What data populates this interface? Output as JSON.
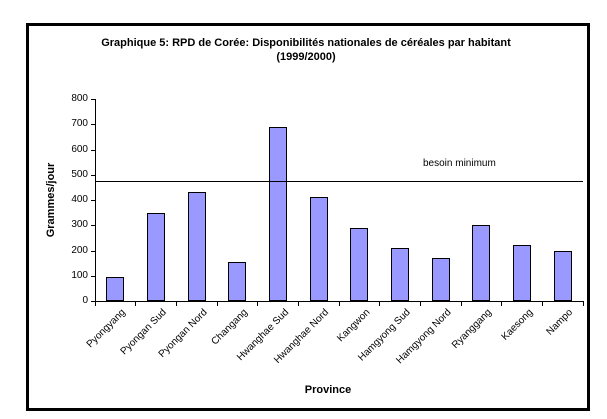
{
  "chart_data": {
    "type": "bar",
    "title": "Graphique 5: RPD de Corée: Disponibilités nationales de céréales par habitant",
    "subtitle": "(1999/2000)",
    "xlabel": "Province",
    "ylabel": "Grammes/jour",
    "categories": [
      "Pyongyang",
      "Pyongan Sud",
      "Pyongan Nord",
      "Changang",
      "Hwanghae Sud",
      "Hwanghae Nord",
      "Kangwon",
      "Hamgyong Sud",
      "Hamgyong Nord",
      "Ryanggang",
      "Kaesong",
      "Nampo"
    ],
    "values": [
      95,
      350,
      430,
      155,
      690,
      410,
      290,
      210,
      170,
      300,
      220,
      200
    ],
    "ylim": [
      0,
      800
    ],
    "yticks": [
      0,
      100,
      200,
      300,
      400,
      500,
      600,
      700,
      800
    ],
    "reference_line": {
      "label": "besoin minimum",
      "value": 475
    },
    "bar_color": "#9999FF",
    "bar_border_color": "#000000",
    "grid": false,
    "legend_position": "none"
  }
}
